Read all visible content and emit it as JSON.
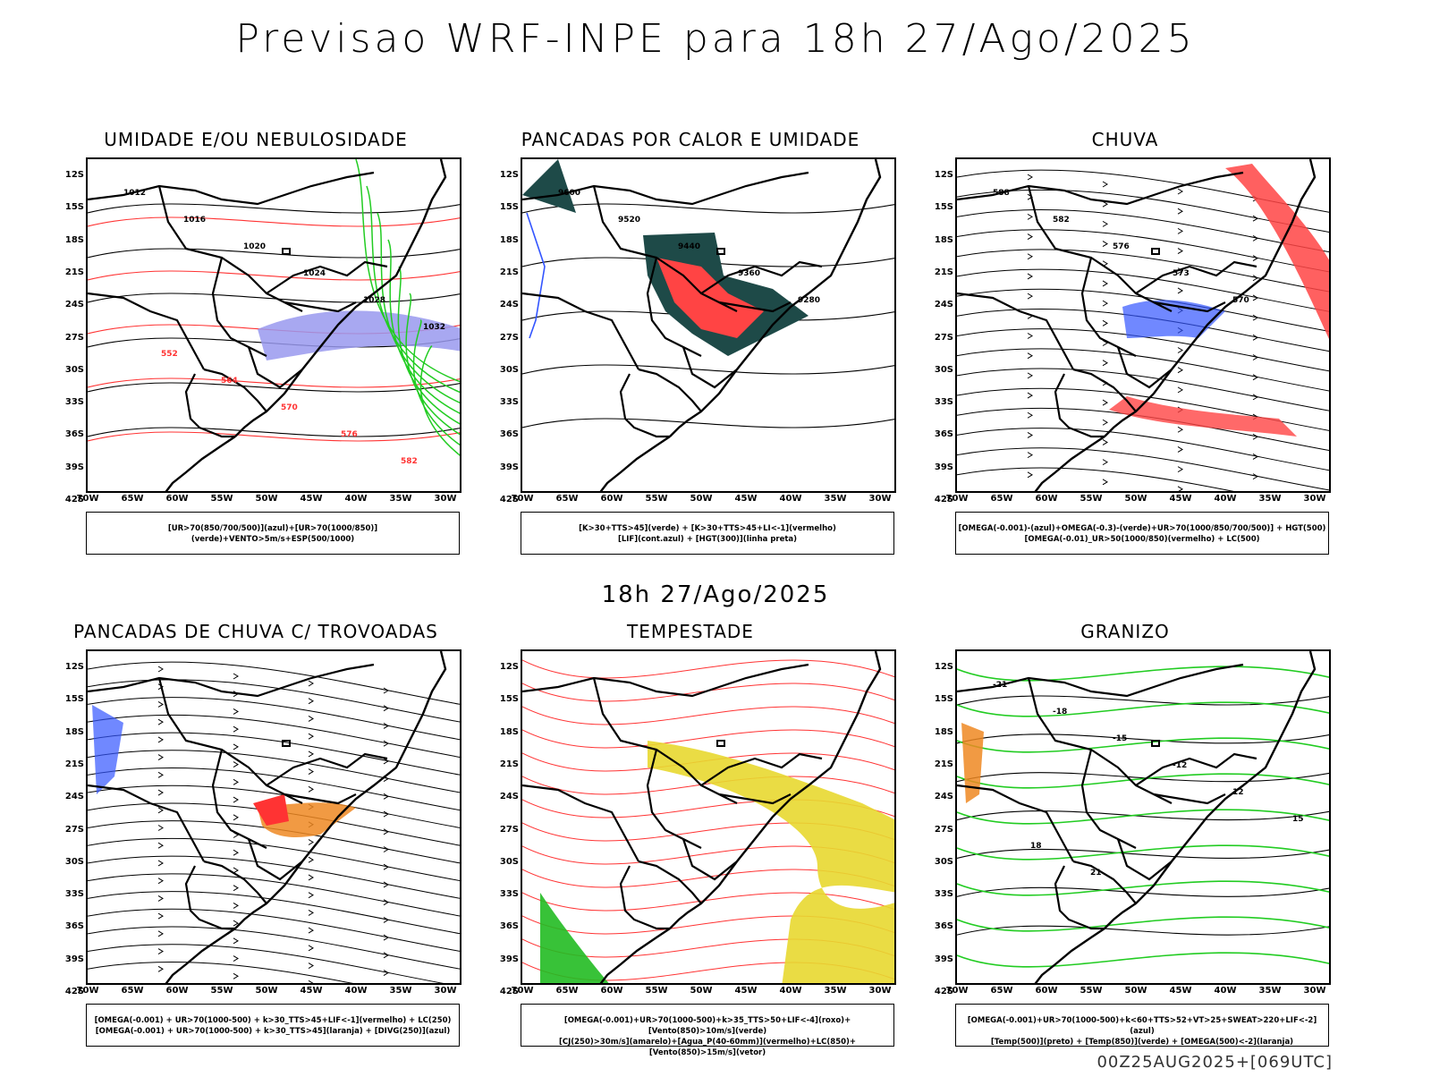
{
  "main_title": "Previsao WRF-INPE  para 18h 27/Ago/2025",
  "mid_title": "18h 27/Ago/2025",
  "footer": "00Z25AUG2025+[069UTC]",
  "y_ticks": [
    "12S",
    "15S",
    "18S",
    "21S",
    "24S",
    "27S",
    "30S",
    "33S",
    "36S",
    "39S",
    "42S"
  ],
  "x_ticks": [
    "70W",
    "65W",
    "60W",
    "55W",
    "50W",
    "45W",
    "40W",
    "35W",
    "30W"
  ],
  "panels": [
    {
      "title": "UMIDADE E/OU NEBULOSIDADE",
      "legend": [
        "[UR>70(850/700/500)](azul)+[UR>70(1000/850)](verde)+VENTO>5m/s+ESP(500/1000)"
      ],
      "labels": [
        "1012",
        "1016",
        "1020",
        "1024",
        "1028",
        "1032",
        "552",
        "564",
        "570",
        "576",
        "582"
      ]
    },
    {
      "title": "PANCADAS POR CALOR E UMIDADE",
      "legend": [
        "[K>30+TTS>45](verde) + [K>30+TTS>45+LI<-1](vermelho)",
        "[LIF](cont.azul) + [HGT(300)](linha preta)"
      ],
      "labels": [
        "9600",
        "9520",
        "9440",
        "9360",
        "9280"
      ]
    },
    {
      "title": "CHUVA",
      "legend": [
        "[OMEGA(-0.001)-(azul)+OMEGA(-0.3)-(verde)+UR>70(1000/850/700/500)] + HGT(500)",
        "[OMEGA(-0.01)_UR>50(1000/850)(vermelho) + LC(500)"
      ],
      "labels": [
        "588",
        "582",
        "576",
        "573",
        "570"
      ]
    },
    {
      "title": "PANCADAS DE CHUVA C/ TROVOADAS",
      "legend": [
        "[OMEGA(-0.001) + UR>70(1000-500) + k>30_TTS>45+LIF<-1](vermelho) + LC(250)",
        "[OMEGA(-0.001) + UR>70(1000-500) + k>30_TTS>45](laranja) + [DIVG(250)](azul)"
      ],
      "labels": []
    },
    {
      "title": "TEMPESTADE",
      "legend": [
        "[OMEGA(-0.001)+UR>70(1000-500)+k>35_TTS>50+LIF<-4](roxo)+[Vento(850)>10m/s](verde)",
        "[CJ(250)>30m/s](amarelo)+[Agua_P(40-60mm)](vermelho)+LC(850)+[Vento(850)>15m/s](vetor)"
      ],
      "labels": []
    },
    {
      "title": "GRANIZO",
      "legend": [
        "[OMEGA(-0.001)+UR>70(1000-500)+k<60+TTS>52+VT>25+SWEAT>220+LIF<-2](azul)",
        "[Temp(500)](preto) + [Temp(850)](verde) + [OMEGA(500)<-2](laranja)"
      ],
      "labels": [
        "-21",
        "-18",
        "-15",
        "-12",
        "12",
        "15",
        "18",
        "21"
      ]
    }
  ],
  "colors": {
    "border": "#000000",
    "green": "#22cc22",
    "red": "#ff3333",
    "blue": "#3355ff",
    "dark_teal": "#1e4a48",
    "purple": "#9999ee",
    "yellow": "#e8d830",
    "orange": "#ee8822"
  }
}
